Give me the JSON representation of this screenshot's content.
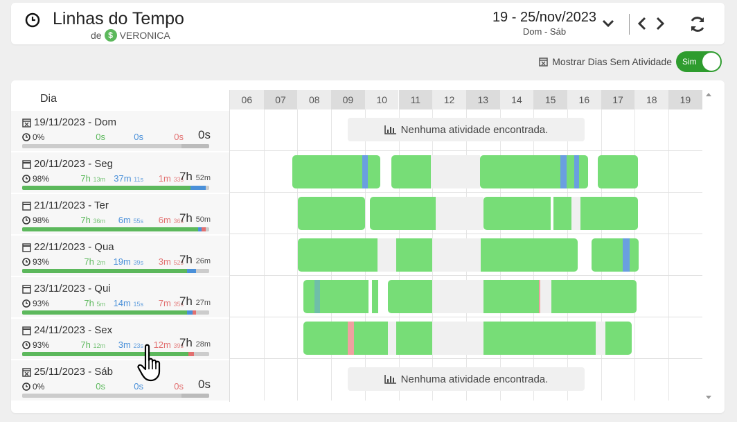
{
  "header": {
    "title": "Linhas do Tempo",
    "subtitle_prefix": "de",
    "subtitle_user": "VERONICA",
    "date_range": "19 - 25/nov/2023",
    "date_range_sub": "Dom - Sáb"
  },
  "toggle": {
    "label": "Mostrar Dias Sem Atividade",
    "state_label": "Sim"
  },
  "table": {
    "day_column_header": "Dia",
    "hours": [
      "06",
      "07",
      "08",
      "09",
      "10",
      "11",
      "12",
      "13",
      "14",
      "15",
      "16",
      "17",
      "18",
      "19"
    ],
    "no_activity_text": "Nenhuma atividade encontrada."
  },
  "days": [
    {
      "date": "19/11/2023 - Dom",
      "empty": true,
      "pct": "0%",
      "prod": "0s",
      "prod_small": "",
      "neutral": "0s",
      "neutral_small": "",
      "unprod": "0s",
      "unprod_small": "",
      "total": "0s",
      "total_small": "",
      "bar": [
        [
          "#cccccc",
          85
        ],
        [
          "#bbbbbb",
          15
        ]
      ],
      "segments": []
    },
    {
      "date": "20/11/2023 - Seg",
      "empty": false,
      "pct": "98%",
      "prod": "7h",
      "prod_small": "13m",
      "neutral": "37m",
      "neutral_small": "11s",
      "unprod": "1m",
      "unprod_small": "33s",
      "total": "7h",
      "total_small": "52m",
      "bar": [
        [
          "#5cb85c",
          90
        ],
        [
          "#4a90d9",
          8
        ],
        [
          "#cccccc",
          2
        ]
      ],
      "segments": [
        [
          "green",
          1.85,
          3.92,
          "L"
        ],
        [
          "blue",
          3.92,
          4.08,
          ""
        ],
        [
          "green",
          4.08,
          4.45,
          "R"
        ],
        [
          "green",
          4.78,
          5.95,
          "L"
        ],
        [
          "gray",
          5.95,
          7.42,
          ""
        ],
        [
          "green",
          7.42,
          9.8,
          "L"
        ],
        [
          "blue",
          9.8,
          9.98,
          ""
        ],
        [
          "green",
          9.98,
          10.2,
          ""
        ],
        [
          "blue",
          10.2,
          10.35,
          ""
        ],
        [
          "green",
          10.35,
          10.62,
          "R"
        ],
        [
          "green",
          10.9,
          12.1,
          "LR"
        ]
      ]
    },
    {
      "date": "21/11/2023 - Ter",
      "empty": false,
      "pct": "98%",
      "prod": "7h",
      "prod_small": "36m",
      "neutral": "6m",
      "neutral_small": "55s",
      "unprod": "6m",
      "unprod_small": "36s",
      "total": "7h",
      "total_small": "50m",
      "bar": [
        [
          "#5cb85c",
          94
        ],
        [
          "#4a90d9",
          2
        ],
        [
          "#e27070",
          2
        ],
        [
          "#cccccc",
          2
        ]
      ],
      "segments": [
        [
          "green",
          2.02,
          4.0,
          "LR"
        ],
        [
          "green",
          4.15,
          6.1,
          "L"
        ],
        [
          "gray",
          6.1,
          7.52,
          ""
        ],
        [
          "green",
          7.52,
          9.5,
          "L"
        ],
        [
          "green",
          9.58,
          10.12,
          ""
        ],
        [
          "gray",
          10.12,
          10.38,
          ""
        ],
        [
          "green",
          10.38,
          12.1,
          "R"
        ]
      ]
    },
    {
      "date": "22/11/2023 - Qua",
      "empty": false,
      "pct": "93%",
      "prod": "7h",
      "prod_small": "2m",
      "neutral": "19m",
      "neutral_small": "39s",
      "unprod": "3m",
      "unprod_small": "52s",
      "total": "7h",
      "total_small": "26m",
      "bar": [
        [
          "#5cb85c",
          88
        ],
        [
          "#4a90d9",
          5
        ],
        [
          "#cccccc",
          7
        ]
      ],
      "segments": [
        [
          "green",
          2.02,
          4.38,
          "L"
        ],
        [
          "gray",
          4.38,
          4.92,
          ""
        ],
        [
          "green",
          4.92,
          6.0,
          ""
        ],
        [
          "gray",
          6.0,
          7.44,
          ""
        ],
        [
          "green",
          7.44,
          10.3,
          "R"
        ],
        [
          "green",
          10.72,
          11.65,
          "L"
        ],
        [
          "blue",
          11.65,
          11.85,
          ""
        ],
        [
          "green",
          11.85,
          12.12,
          "R"
        ]
      ]
    },
    {
      "date": "23/11/2023 - Qui",
      "empty": false,
      "pct": "93%",
      "prod": "7h",
      "prod_small": "5m",
      "neutral": "14m",
      "neutral_small": "15s",
      "unprod": "7m",
      "unprod_small": "35s",
      "total": "7h",
      "total_small": "27m",
      "bar": [
        [
          "#5cb85c",
          88
        ],
        [
          "#4a90d9",
          3
        ],
        [
          "#e27070",
          2
        ],
        [
          "#cccccc",
          7
        ]
      ],
      "segments": [
        [
          "green",
          2.18,
          2.5,
          "L"
        ],
        [
          "teal",
          2.5,
          2.66,
          ""
        ],
        [
          "green",
          2.66,
          4.1,
          ""
        ],
        [
          "green",
          4.2,
          4.4,
          ""
        ],
        [
          "green",
          4.68,
          6.0,
          "L"
        ],
        [
          "gray",
          6.0,
          7.52,
          ""
        ],
        [
          "green",
          7.52,
          9.15,
          ""
        ],
        [
          "pink",
          9.15,
          9.2,
          ""
        ],
        [
          "gray",
          9.2,
          9.52,
          ""
        ],
        [
          "green",
          9.52,
          12.05,
          "R"
        ]
      ]
    },
    {
      "date": "24/11/2023 - Sex",
      "empty": false,
      "pct": "93%",
      "prod": "7h",
      "prod_small": "12m",
      "neutral": "3m",
      "neutral_small": "23s",
      "unprod": "12m",
      "unprod_small": "39s",
      "total": "7h",
      "total_small": "28m",
      "bar": [
        [
          "#5cb85c",
          89
        ],
        [
          "#e27070",
          3
        ],
        [
          "#cccccc",
          8
        ]
      ],
      "segments": [
        [
          "green",
          2.18,
          3.5,
          "L"
        ],
        [
          "pink",
          3.5,
          3.68,
          ""
        ],
        [
          "green",
          3.68,
          4.68,
          ""
        ],
        [
          "gray",
          4.68,
          4.92,
          ""
        ],
        [
          "green",
          4.92,
          6.0,
          ""
        ],
        [
          "gray",
          6.0,
          7.52,
          ""
        ],
        [
          "green",
          7.52,
          10.85,
          ""
        ],
        [
          "gray",
          10.85,
          11.12,
          ""
        ],
        [
          "green",
          11.12,
          11.9,
          "R"
        ]
      ]
    },
    {
      "date": "25/11/2023 - Sáb",
      "empty": true,
      "pct": "0%",
      "prod": "0s",
      "prod_small": "",
      "neutral": "0s",
      "neutral_small": "",
      "unprod": "0s",
      "unprod_small": "",
      "total": "0s",
      "total_small": "",
      "bar": [
        [
          "#cccccc",
          85
        ],
        [
          "#bbbbbb",
          15
        ]
      ],
      "segments": []
    }
  ],
  "colors": {
    "green": "#77dd77",
    "blue": "#6a9fe0",
    "teal": "#6fbfa8",
    "pink": "#f0a0a0",
    "gray": "#f0f0f0",
    "accent": "#2e9c2e"
  }
}
